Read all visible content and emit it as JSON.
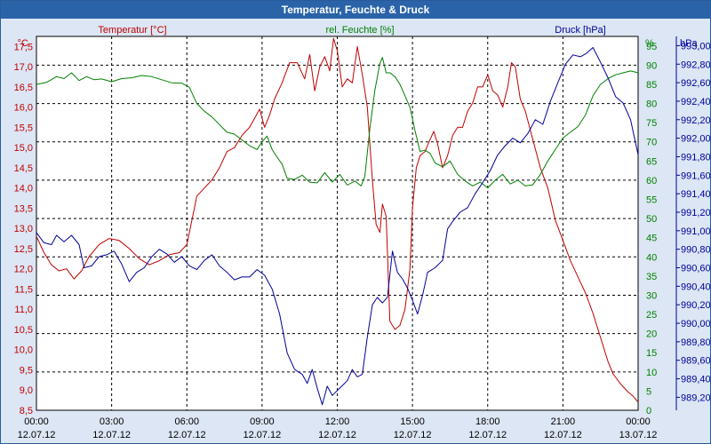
{
  "chart_data": {
    "type": "line",
    "title": "Temperatur, Feuchte & Druck",
    "colors": {
      "temperature": "#c00000",
      "humidity": "#008000",
      "pressure": "#000099",
      "axis": "#000000",
      "grid": "#000000"
    },
    "x_ticks": [
      {
        "time": "00:00",
        "date": "12.07.12"
      },
      {
        "time": "03:00",
        "date": "12.07.12"
      },
      {
        "time": "06:00",
        "date": "12.07.12"
      },
      {
        "time": "09:00",
        "date": "12.07.12"
      },
      {
        "time": "12:00",
        "date": "12.07.12"
      },
      {
        "time": "15:00",
        "date": "12.07.12"
      },
      {
        "time": "18:00",
        "date": "12.07.12"
      },
      {
        "time": "21:00",
        "date": "12.07.12"
      },
      {
        "time": "00:00",
        "date": "13.07.12"
      }
    ],
    "xlim_hours": [
      0,
      24
    ],
    "axes": {
      "temperature": {
        "label": "Temperatur [°C]",
        "unit": "°C",
        "range": [
          8.5,
          17.75
        ],
        "ticks": [
          "8,5",
          "9,0",
          "9,5",
          "10,0",
          "10,5",
          "11,0",
          "11,5",
          "12,0",
          "12,5",
          "13,0",
          "13,5",
          "14,0",
          "14,5",
          "15,0",
          "15,5",
          "16,0",
          "16,5",
          "17,0",
          "17,5"
        ]
      },
      "humidity": {
        "label": "rel. Feuchte [%]",
        "unit": "%",
        "range": [
          0,
          97.5
        ],
        "ticks": [
          "0",
          "5",
          "10",
          "15",
          "20",
          "25",
          "30",
          "35",
          "40",
          "45",
          "50",
          "55",
          "60",
          "65",
          "70",
          "75",
          "80",
          "85",
          "90",
          "95"
        ]
      },
      "pressure": {
        "label": "Druck [hPa]",
        "unit": "hPa",
        "range": [
          989.06,
          993.1
        ],
        "ticks": [
          "989,20",
          "989,40",
          "989,60",
          "989,80",
          "990,00",
          "990,20",
          "990,40",
          "990,60",
          "990,80",
          "991,00",
          "991,20",
          "991,40",
          "991,60",
          "991,80",
          "992,00",
          "992,20",
          "992,40",
          "992,60",
          "992,80",
          "993,00"
        ]
      }
    },
    "series": [
      {
        "name": "Temperatur [°C]",
        "key": "temperature",
        "points": [
          [
            0,
            12.8
          ],
          [
            0.3,
            12.4
          ],
          [
            0.6,
            12.1
          ],
          [
            0.9,
            11.95
          ],
          [
            1.2,
            12.0
          ],
          [
            1.5,
            11.75
          ],
          [
            1.8,
            11.95
          ],
          [
            2.1,
            12.3
          ],
          [
            2.5,
            12.6
          ],
          [
            2.9,
            12.75
          ],
          [
            3.3,
            12.7
          ],
          [
            3.7,
            12.5
          ],
          [
            4.1,
            12.25
          ],
          [
            4.5,
            12.1
          ],
          [
            4.9,
            12.2
          ],
          [
            5.3,
            12.35
          ],
          [
            5.7,
            12.4
          ],
          [
            6.0,
            12.6
          ],
          [
            6.2,
            13.2
          ],
          [
            6.4,
            13.8
          ],
          [
            6.7,
            14.0
          ],
          [
            7.0,
            14.2
          ],
          [
            7.3,
            14.5
          ],
          [
            7.6,
            14.9
          ],
          [
            7.9,
            15.0
          ],
          [
            8.2,
            15.3
          ],
          [
            8.5,
            15.5
          ],
          [
            8.9,
            15.95
          ],
          [
            9.1,
            15.5
          ],
          [
            9.3,
            15.8
          ],
          [
            9.5,
            16.2
          ],
          [
            9.8,
            16.6
          ],
          [
            10.1,
            17.1
          ],
          [
            10.4,
            17.1
          ],
          [
            10.7,
            16.7
          ],
          [
            10.9,
            17.3
          ],
          [
            11.1,
            16.4
          ],
          [
            11.3,
            17.0
          ],
          [
            11.5,
            17.25
          ],
          [
            11.7,
            16.9
          ],
          [
            11.85,
            17.7
          ],
          [
            12.0,
            17.4
          ],
          [
            12.2,
            16.5
          ],
          [
            12.4,
            16.7
          ],
          [
            12.6,
            16.6
          ],
          [
            12.8,
            17.5
          ],
          [
            13.0,
            16.8
          ],
          [
            13.2,
            16.0
          ],
          [
            13.4,
            14.2
          ],
          [
            13.55,
            13.1
          ],
          [
            13.7,
            12.9
          ],
          [
            13.8,
            13.6
          ],
          [
            13.95,
            13.3
          ],
          [
            14.1,
            10.7
          ],
          [
            14.3,
            10.5
          ],
          [
            14.5,
            10.6
          ],
          [
            14.7,
            11.0
          ],
          [
            14.9,
            12.0
          ],
          [
            15.0,
            13.5
          ],
          [
            15.15,
            14.5
          ],
          [
            15.3,
            14.8
          ],
          [
            15.5,
            14.9
          ],
          [
            15.7,
            15.2
          ],
          [
            15.85,
            15.4
          ],
          [
            16.0,
            15.1
          ],
          [
            16.2,
            14.5
          ],
          [
            16.4,
            14.8
          ],
          [
            16.6,
            15.3
          ],
          [
            16.8,
            15.5
          ],
          [
            17.0,
            15.5
          ],
          [
            17.2,
            15.9
          ],
          [
            17.4,
            16.1
          ],
          [
            17.6,
            16.5
          ],
          [
            17.8,
            16.5
          ],
          [
            18.0,
            16.8
          ],
          [
            18.2,
            16.4
          ],
          [
            18.4,
            16.3
          ],
          [
            18.6,
            16.0
          ],
          [
            18.8,
            16.5
          ],
          [
            18.95,
            17.1
          ],
          [
            19.1,
            17.0
          ],
          [
            19.3,
            16.2
          ],
          [
            19.5,
            15.9
          ],
          [
            19.8,
            15.2
          ],
          [
            20.1,
            14.5
          ],
          [
            20.4,
            14.0
          ],
          [
            20.7,
            13.2
          ],
          [
            21.0,
            12.7
          ],
          [
            21.3,
            12.2
          ],
          [
            21.6,
            11.8
          ],
          [
            21.9,
            11.4
          ],
          [
            22.2,
            10.9
          ],
          [
            22.5,
            10.3
          ],
          [
            22.8,
            9.7
          ],
          [
            23.0,
            9.4
          ],
          [
            23.3,
            9.15
          ],
          [
            23.6,
            8.95
          ],
          [
            23.8,
            8.85
          ],
          [
            24.0,
            8.7
          ]
        ]
      },
      {
        "name": "rel. Feuchte [%]",
        "key": "humidity",
        "points": [
          [
            0,
            85
          ],
          [
            0.4,
            85.5
          ],
          [
            0.8,
            87
          ],
          [
            1.1,
            86.5
          ],
          [
            1.4,
            88
          ],
          [
            1.7,
            86
          ],
          [
            2.0,
            87
          ],
          [
            2.3,
            86.2
          ],
          [
            2.6,
            86.4
          ],
          [
            3.0,
            85.7
          ],
          [
            3.4,
            86.5
          ],
          [
            3.8,
            86.7
          ],
          [
            4.2,
            87.3
          ],
          [
            4.6,
            87
          ],
          [
            5.0,
            86.2
          ],
          [
            5.4,
            85.4
          ],
          [
            5.8,
            85.3
          ],
          [
            6.1,
            84.2
          ],
          [
            6.4,
            80
          ],
          [
            6.7,
            78
          ],
          [
            7.0,
            76.5
          ],
          [
            7.3,
            74.5
          ],
          [
            7.6,
            72.5
          ],
          [
            7.9,
            72
          ],
          [
            8.2,
            70.5
          ],
          [
            8.5,
            69
          ],
          [
            8.8,
            68
          ],
          [
            9.0,
            70
          ],
          [
            9.2,
            71.5
          ],
          [
            9.4,
            68
          ],
          [
            9.6,
            66
          ],
          [
            9.8,
            64.2
          ],
          [
            10.0,
            60.5
          ],
          [
            10.3,
            60.2
          ],
          [
            10.6,
            61.3
          ],
          [
            10.9,
            59.5
          ],
          [
            11.2,
            59.3
          ],
          [
            11.5,
            62
          ],
          [
            11.8,
            59.5
          ],
          [
            12.1,
            61.5
          ],
          [
            12.4,
            58.7
          ],
          [
            12.7,
            59.8
          ],
          [
            12.95,
            58.5
          ],
          [
            13.1,
            61
          ],
          [
            13.3,
            73.5
          ],
          [
            13.5,
            83.5
          ],
          [
            13.7,
            90.5
          ],
          [
            13.8,
            92
          ],
          [
            13.95,
            88
          ],
          [
            14.1,
            88
          ],
          [
            14.3,
            87
          ],
          [
            14.5,
            85
          ],
          [
            14.7,
            82
          ],
          [
            14.9,
            79
          ],
          [
            15.1,
            73
          ],
          [
            15.3,
            67.5
          ],
          [
            15.5,
            67.8
          ],
          [
            15.7,
            67
          ],
          [
            15.9,
            64.5
          ],
          [
            16.2,
            63.5
          ],
          [
            16.5,
            65
          ],
          [
            16.8,
            61.5
          ],
          [
            17.1,
            59.8
          ],
          [
            17.4,
            58.5
          ],
          [
            17.7,
            59.5
          ],
          [
            18.0,
            58
          ],
          [
            18.3,
            60
          ],
          [
            18.6,
            61.5
          ],
          [
            18.9,
            59
          ],
          [
            19.2,
            60
          ],
          [
            19.5,
            58.5
          ],
          [
            19.8,
            58.8
          ],
          [
            20.1,
            61.5
          ],
          [
            20.4,
            65
          ],
          [
            20.7,
            68
          ],
          [
            21.0,
            71
          ],
          [
            21.3,
            72.5
          ],
          [
            21.6,
            74
          ],
          [
            21.9,
            77
          ],
          [
            22.2,
            82
          ],
          [
            22.5,
            85
          ],
          [
            22.8,
            86.5
          ],
          [
            23.1,
            87.5
          ],
          [
            23.4,
            88
          ],
          [
            23.7,
            88.5
          ],
          [
            24.0,
            88
          ]
        ]
      },
      {
        "name": "Druck [hPa]",
        "key": "pressure",
        "points": [
          [
            0,
            990.98
          ],
          [
            0.3,
            990.87
          ],
          [
            0.6,
            990.85
          ],
          [
            0.8,
            990.95
          ],
          [
            1.1,
            990.88
          ],
          [
            1.4,
            990.95
          ],
          [
            1.7,
            990.85
          ],
          [
            1.9,
            990.6
          ],
          [
            2.2,
            990.62
          ],
          [
            2.5,
            990.72
          ],
          [
            2.8,
            990.74
          ],
          [
            3.1,
            990.78
          ],
          [
            3.4,
            990.64
          ],
          [
            3.7,
            990.45
          ],
          [
            4.0,
            990.55
          ],
          [
            4.3,
            990.6
          ],
          [
            4.6,
            990.72
          ],
          [
            4.9,
            990.8
          ],
          [
            5.2,
            990.75
          ],
          [
            5.5,
            990.66
          ],
          [
            5.8,
            990.72
          ],
          [
            6.1,
            990.62
          ],
          [
            6.4,
            990.58
          ],
          [
            6.7,
            990.68
          ],
          [
            7.0,
            990.74
          ],
          [
            7.3,
            990.62
          ],
          [
            7.6,
            990.55
          ],
          [
            7.9,
            990.47
          ],
          [
            8.2,
            990.5
          ],
          [
            8.5,
            990.5
          ],
          [
            8.8,
            990.58
          ],
          [
            9.1,
            990.52
          ],
          [
            9.4,
            990.37
          ],
          [
            9.7,
            990.1
          ],
          [
            10.0,
            989.68
          ],
          [
            10.3,
            989.5
          ],
          [
            10.6,
            989.45
          ],
          [
            10.8,
            989.35
          ],
          [
            11.0,
            989.5
          ],
          [
            11.2,
            989.3
          ],
          [
            11.4,
            989.12
          ],
          [
            11.6,
            989.32
          ],
          [
            11.8,
            989.22
          ],
          [
            12.1,
            989.3
          ],
          [
            12.4,
            989.38
          ],
          [
            12.6,
            989.5
          ],
          [
            12.8,
            989.42
          ],
          [
            13.0,
            989.45
          ],
          [
            13.2,
            989.85
          ],
          [
            13.4,
            990.2
          ],
          [
            13.6,
            990.28
          ],
          [
            13.8,
            990.22
          ],
          [
            14.0,
            990.28
          ],
          [
            14.2,
            990.78
          ],
          [
            14.4,
            990.55
          ],
          [
            14.6,
            990.48
          ],
          [
            14.8,
            990.38
          ],
          [
            15.0,
            990.25
          ],
          [
            15.2,
            990.1
          ],
          [
            15.4,
            990.3
          ],
          [
            15.6,
            990.55
          ],
          [
            15.9,
            990.6
          ],
          [
            16.2,
            990.68
          ],
          [
            16.4,
            991.02
          ],
          [
            16.6,
            991.1
          ],
          [
            16.9,
            991.2
          ],
          [
            17.2,
            991.25
          ],
          [
            17.5,
            991.4
          ],
          [
            17.8,
            991.52
          ],
          [
            18.1,
            991.65
          ],
          [
            18.4,
            991.82
          ],
          [
            18.7,
            991.92
          ],
          [
            19.0,
            992.0
          ],
          [
            19.3,
            991.95
          ],
          [
            19.6,
            992.05
          ],
          [
            19.9,
            992.2
          ],
          [
            20.2,
            992.15
          ],
          [
            20.5,
            992.4
          ],
          [
            20.8,
            992.6
          ],
          [
            21.1,
            992.8
          ],
          [
            21.4,
            992.9
          ],
          [
            21.7,
            992.88
          ],
          [
            21.95,
            992.92
          ],
          [
            22.2,
            992.98
          ],
          [
            22.5,
            992.82
          ],
          [
            22.8,
            992.65
          ],
          [
            23.1,
            992.45
          ],
          [
            23.4,
            992.38
          ],
          [
            23.7,
            992.2
          ],
          [
            24.0,
            991.82
          ]
        ]
      }
    ]
  }
}
